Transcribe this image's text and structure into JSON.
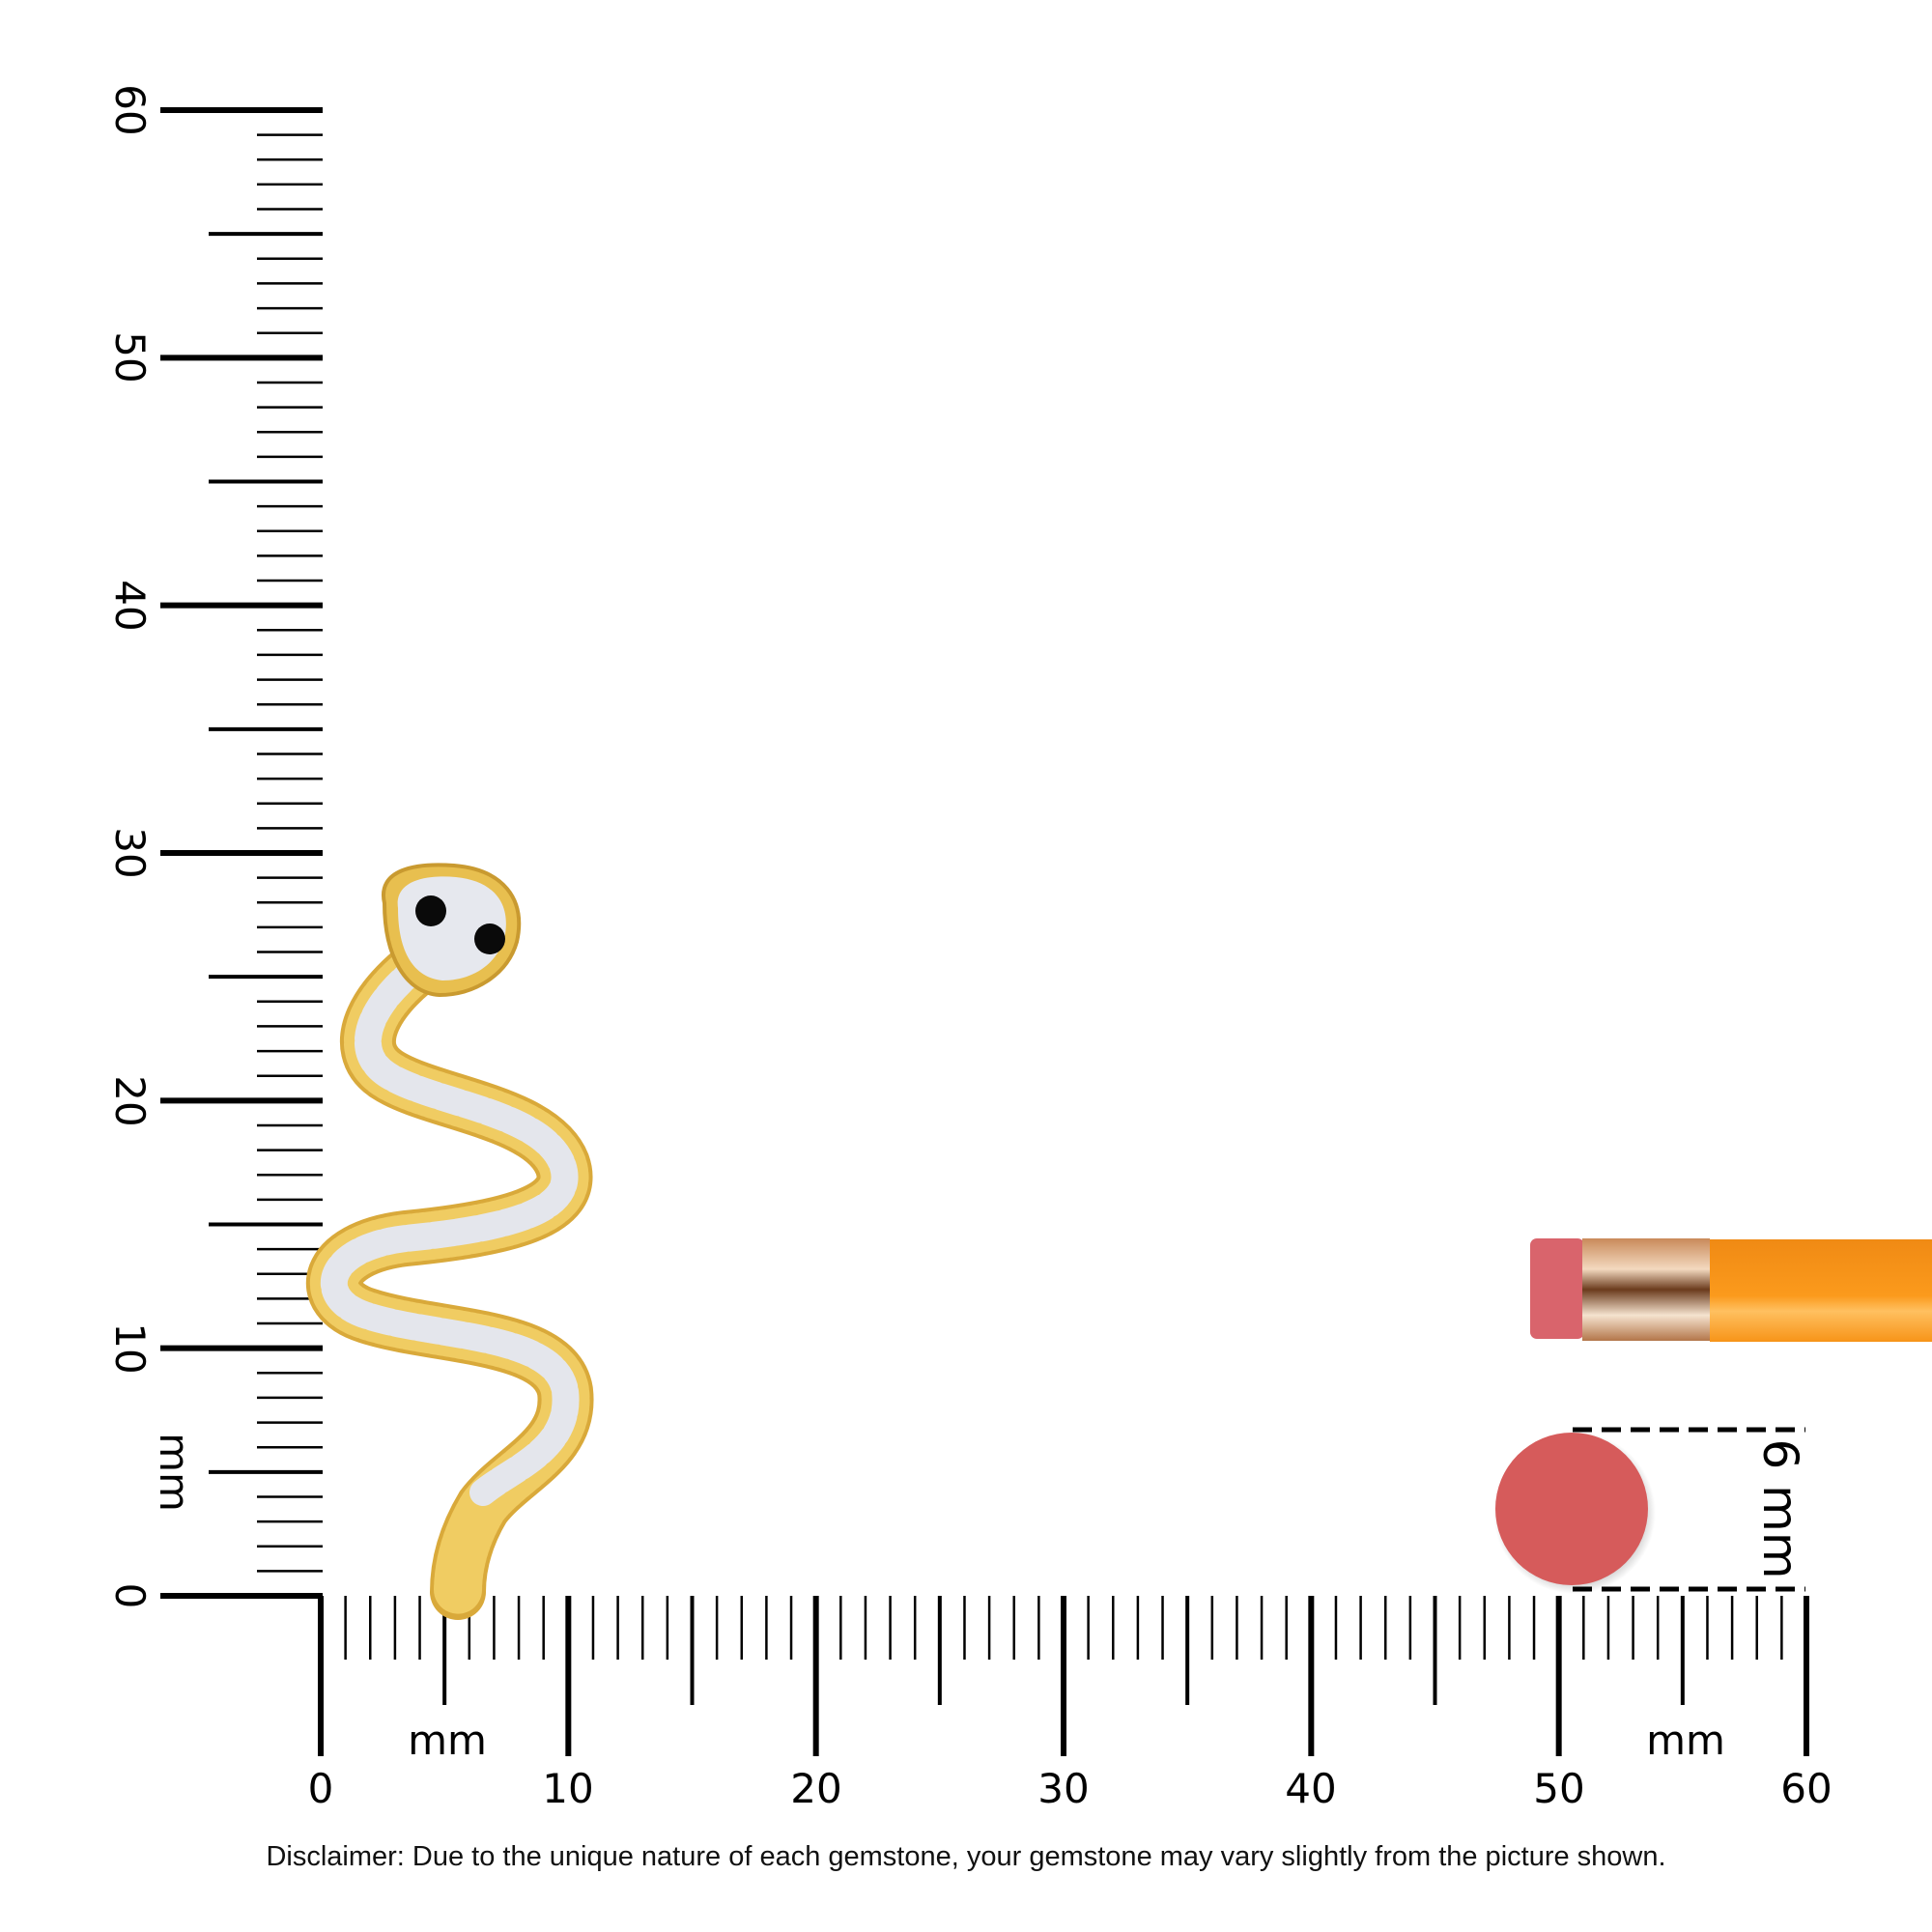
{
  "vertical_ruler": {
    "unit": "mm",
    "labels": [
      "0",
      "10",
      "20",
      "30",
      "40",
      "50",
      "60"
    ]
  },
  "horizontal_ruler": {
    "unit_left": "mm",
    "unit_right": "mm",
    "labels": [
      "0",
      "10",
      "20",
      "30",
      "40",
      "50",
      "60"
    ]
  },
  "reference": {
    "size_label": "6 mm",
    "circle_color": "#d65b5b",
    "pencil_color": "#f7901e",
    "eraser_color": "#d9646c"
  },
  "product": {
    "metal_color": "#e8bf4f",
    "stone_color": "#e6e8ee",
    "eye_color": "#0a0a0a"
  },
  "disclaimer": "Disclaimer: Due to the unique nature of each gemstone, your gemstone may vary slightly from the picture shown."
}
